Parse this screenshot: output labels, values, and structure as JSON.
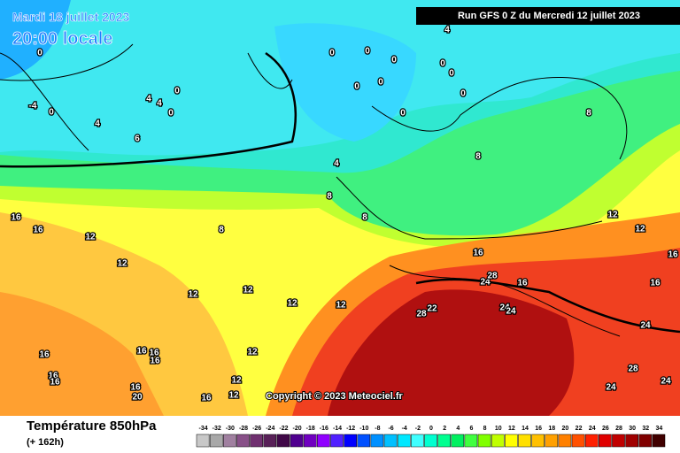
{
  "header": {
    "date": "Mardi 18 juillet 2023",
    "time": "20:00 locale",
    "run": "Run GFS 0 Z du Mercredi 12 juillet 2023"
  },
  "footer": {
    "title": "Température 850hPa",
    "lead": "(+ 162h)",
    "copyright": "Copyright © 2023 Meteociel.fr"
  },
  "legend": {
    "values": [
      -34,
      -32,
      -30,
      -28,
      -26,
      -24,
      -22,
      -20,
      -18,
      -16,
      -14,
      -12,
      -10,
      -8,
      -6,
      -4,
      -2,
      0,
      2,
      4,
      6,
      8,
      10,
      12,
      14,
      16,
      18,
      20,
      22,
      24,
      26,
      28,
      30,
      32,
      34
    ],
    "colors": [
      "#c8c8c8",
      "#a8a8a8",
      "#a080a0",
      "#885088",
      "#703070",
      "#582058",
      "#400848",
      "#500090",
      "#7000c0",
      "#9000ff",
      "#5020ff",
      "#0000ff",
      "#0050ff",
      "#0090ff",
      "#00c0ff",
      "#00e8ff",
      "#40ffff",
      "#00ffd0",
      "#00ff90",
      "#00f060",
      "#40ff40",
      "#80ff00",
      "#c0ff00",
      "#ffff00",
      "#ffe000",
      "#ffc000",
      "#ffa000",
      "#ff8000",
      "#ff5000",
      "#ff2000",
      "#e00000",
      "#c00000",
      "#a00000",
      "#800000",
      "#400000"
    ]
  },
  "contour_labels": [
    0,
    -4,
    0,
    4,
    4,
    4,
    0,
    0,
    6,
    0,
    0,
    0,
    0,
    0,
    0,
    0,
    0,
    0,
    4,
    4,
    8,
    8,
    8,
    8,
    8,
    16,
    16,
    12,
    12,
    12,
    12,
    12,
    12,
    12,
    12,
    12,
    12,
    12,
    16,
    16,
    16,
    16,
    16,
    16,
    16,
    16,
    16,
    16,
    16,
    20,
    16,
    24,
    28,
    22,
    28,
    24,
    24,
    24,
    28,
    24,
    24
  ]
}
